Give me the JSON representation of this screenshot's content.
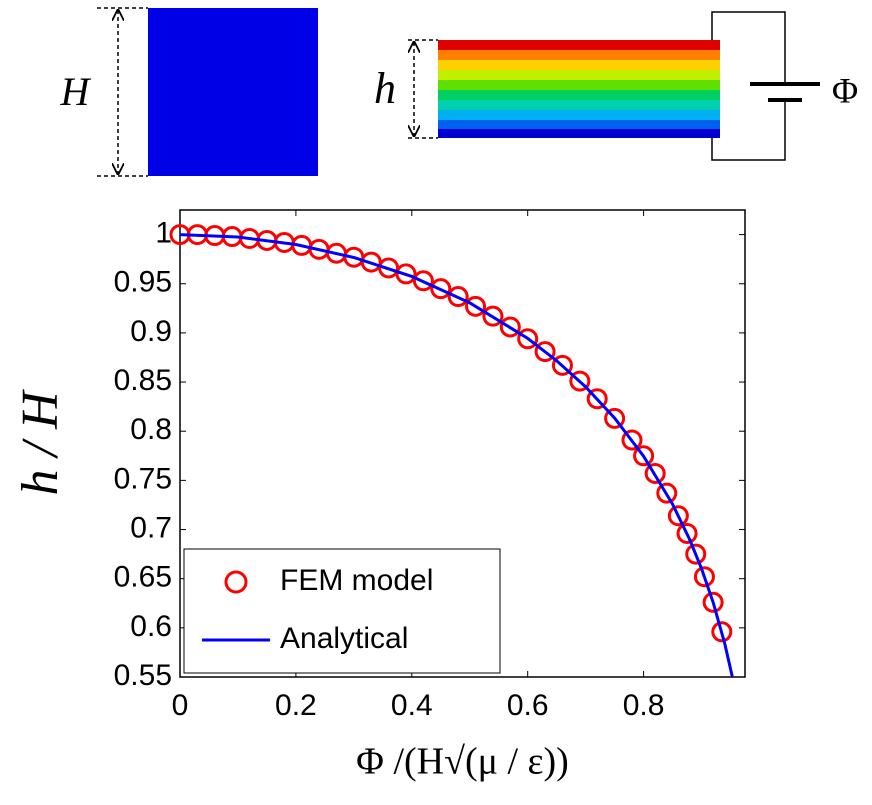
{
  "diagram": {
    "undeformed_label": "H",
    "deformed_label": "h",
    "voltage_label": "Φ"
  },
  "chart_data": {
    "type": "line",
    "x_label": "Φ /(H√(μ / ε))",
    "y_label": "h / H",
    "xlim": [
      0,
      0.975
    ],
    "ylim": [
      0.55,
      1.025
    ],
    "xticks": [
      0,
      0.2,
      0.4,
      0.6,
      0.8
    ],
    "yticks": [
      0.55,
      0.6,
      0.65,
      0.7,
      0.75,
      0.8,
      0.85,
      0.9,
      0.95,
      1
    ],
    "legend": "lower left",
    "series": [
      {
        "name": "FEM model",
        "color": "#ff0000",
        "marker": "circle",
        "x": [
          0,
          0.03,
          0.06,
          0.09,
          0.12,
          0.15,
          0.18,
          0.21,
          0.24,
          0.27,
          0.3,
          0.33,
          0.36,
          0.39,
          0.42,
          0.45,
          0.48,
          0.51,
          0.54,
          0.57,
          0.6,
          0.63,
          0.66,
          0.69,
          0.72,
          0.75,
          0.78,
          0.8,
          0.82,
          0.84,
          0.86,
          0.875,
          0.89,
          0.905,
          0.92,
          0.935
        ],
        "values": [
          1,
          1.0,
          0.999,
          0.998,
          0.996,
          0.994,
          0.992,
          0.989,
          0.985,
          0.981,
          0.977,
          0.972,
          0.966,
          0.96,
          0.953,
          0.945,
          0.937,
          0.927,
          0.917,
          0.906,
          0.894,
          0.881,
          0.867,
          0.851,
          0.833,
          0.813,
          0.791,
          0.775,
          0.757,
          0.737,
          0.714,
          0.696,
          0.675,
          0.652,
          0.626,
          0.596
        ]
      },
      {
        "name": "Analytical",
        "color": "#0000ff",
        "marker": "none",
        "x": [
          0,
          0.1,
          0.2,
          0.3,
          0.4,
          0.5,
          0.6,
          0.65,
          0.7,
          0.75,
          0.8,
          0.85,
          0.88,
          0.9,
          0.92,
          0.94,
          0.953
        ],
        "values": [
          1,
          0.9975,
          0.9899,
          0.9767,
          0.9574,
          0.9306,
          0.8944,
          0.8717,
          0.8451,
          0.8133,
          0.7746,
          0.7258,
          0.6892,
          0.6602,
          0.626,
          0.5841,
          0.5505
        ]
      }
    ]
  }
}
